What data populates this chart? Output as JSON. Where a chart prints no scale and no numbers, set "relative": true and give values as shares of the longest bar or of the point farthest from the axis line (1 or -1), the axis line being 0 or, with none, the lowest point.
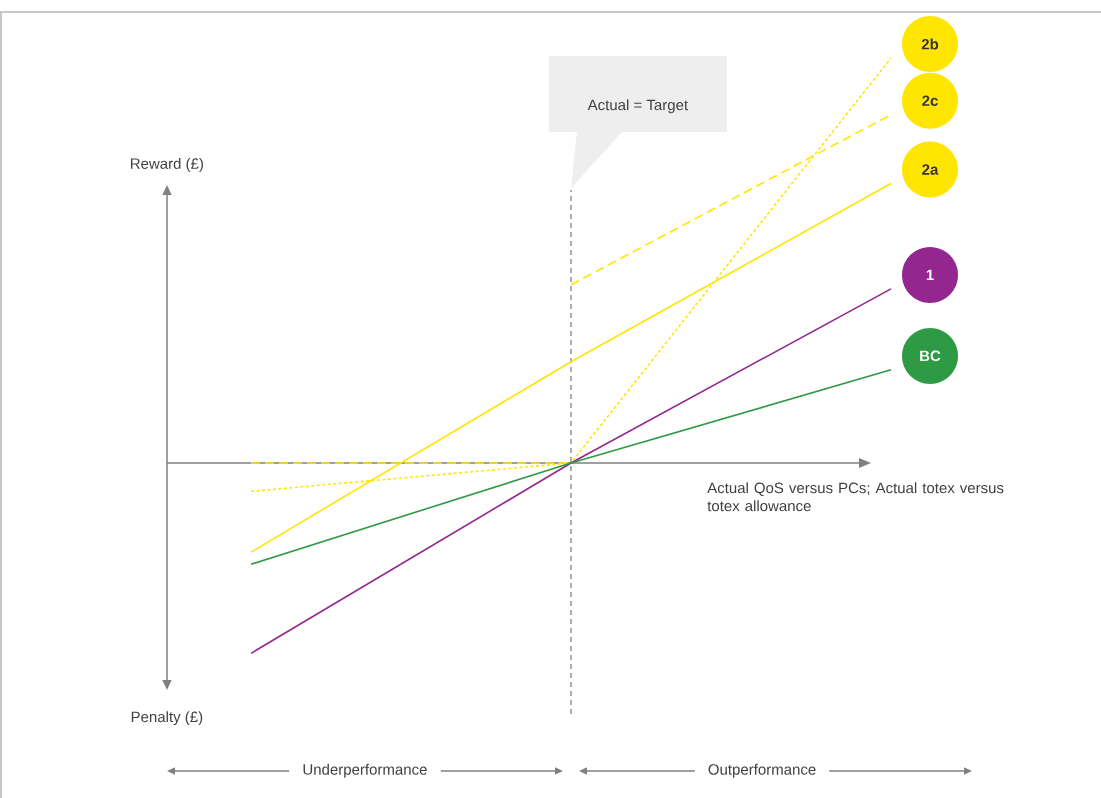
{
  "chart_data": {
    "type": "line",
    "relative": true,
    "marker": "none",
    "categories": [
      null,
      null,
      null
    ],
    "ylabel": "Reward (£)",
    "xlabel": "Actual QoS versus PCs; Actual totex versus totex allowance",
    "annotations": [
      "Penalty (£)",
      "Underperformance",
      "Outperformance",
      "Actual = Target"
    ],
    "series": [
      {
        "name": "2b",
        "color": "#ffe600",
        "line_style": "dotted",
        "values": [
          -0.07,
          0,
          1
        ]
      },
      {
        "name": "2c",
        "color": "#ffe600",
        "line_style": "dashed",
        "values": [
          null,
          0.44,
          0.86
        ]
      },
      {
        "color": "#ffe600",
        "line_style": "dashed",
        "values": [
          0,
          0,
          null
        ]
      },
      {
        "name": "2a",
        "color": "#ffe600",
        "line_style": "solid",
        "values": [
          -0.22,
          0.25,
          0.69
        ]
      },
      {
        "name": "1",
        "color": "#93278f",
        "line_style": "solid",
        "values": [
          -0.47,
          0,
          0.43
        ]
      },
      {
        "name": "BC",
        "color": "#2e9a44",
        "line_style": "solid",
        "values": [
          -0.25,
          0,
          0.23
        ]
      }
    ]
  }
}
